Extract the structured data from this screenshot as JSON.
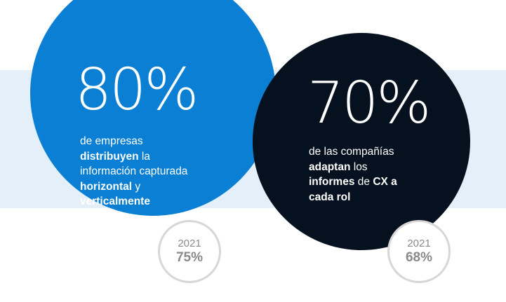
{
  "stats": [
    {
      "value": "80%",
      "description": [
        {
          "text": "de empresas",
          "bold": false
        },
        {
          "text": "distribuyen",
          "bold": true
        },
        {
          "text": " la",
          "bold": false
        },
        {
          "text": "información capturada",
          "bold": false
        },
        {
          "text": "horizontal",
          "bold": true
        },
        {
          "text": " y",
          "bold": false
        },
        {
          "text": "verticalmente",
          "bold": true
        }
      ],
      "compare_year": "2021",
      "compare_value": "75%",
      "color": "#0a7fd3"
    },
    {
      "value": "70%",
      "description": [
        {
          "text": "de las compañías",
          "bold": false
        },
        {
          "text": "adaptan",
          "bold": true
        },
        {
          "text": " los",
          "bold": false
        },
        {
          "text": "informes",
          "bold": true
        },
        {
          "text": " de ",
          "bold": false
        },
        {
          "text": "CX a",
          "bold": true
        },
        {
          "text": "cada rol",
          "bold": true
        }
      ],
      "compare_year": "2021",
      "compare_value": "68%",
      "color": "#06111f"
    }
  ],
  "colors": {
    "band": "#e4eff9",
    "badge_border": "#d7d7d7",
    "badge_text": "#8a8a8a"
  }
}
